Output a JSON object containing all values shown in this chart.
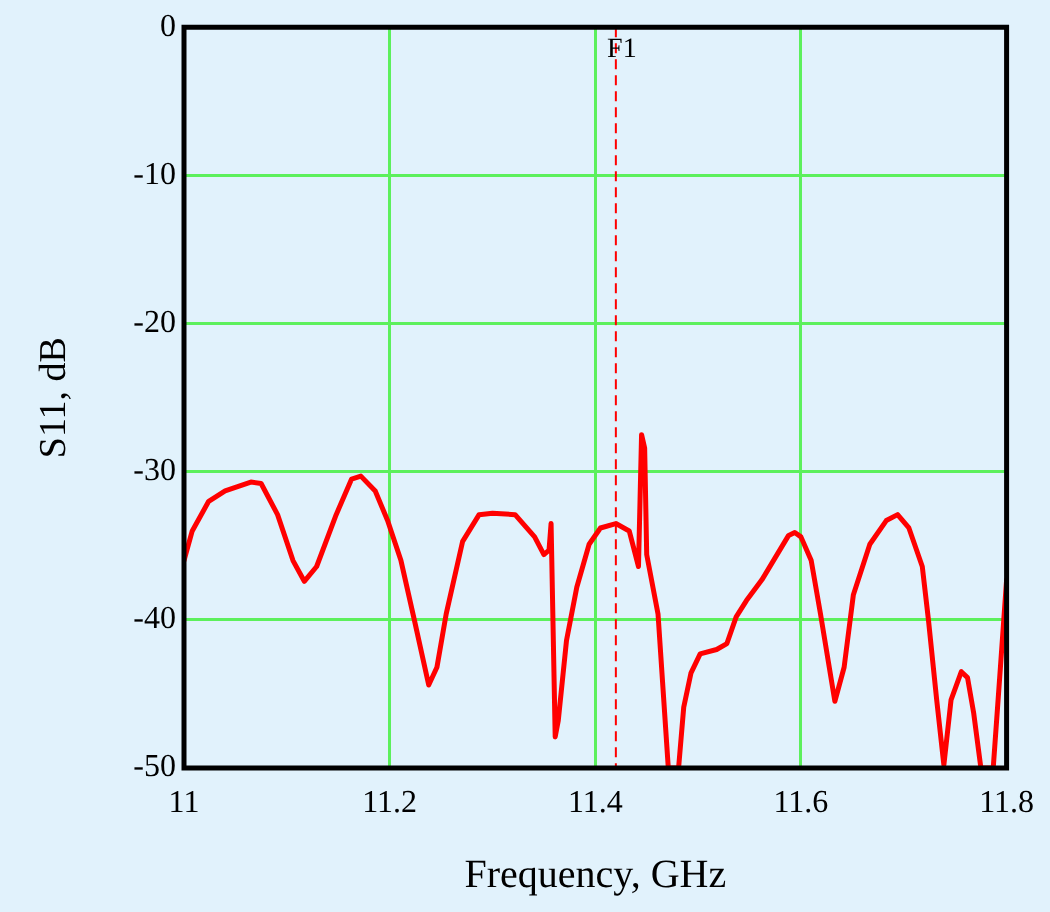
{
  "chart_data": {
    "type": "line",
    "xlabel": "Frequency, GHz",
    "ylabel": "S11, dB",
    "x": [
      11.0,
      11.008,
      11.024,
      11.04,
      11.065,
      11.075,
      11.091,
      11.106,
      11.117,
      11.129,
      11.148,
      11.163,
      11.172,
      11.186,
      11.198,
      11.211,
      11.224,
      11.238,
      11.246,
      11.255,
      11.271,
      11.287,
      11.3,
      11.322,
      11.341,
      11.35,
      11.355,
      11.357,
      11.361,
      11.364,
      11.372,
      11.382,
      11.394,
      11.405,
      11.42,
      11.433,
      11.442,
      11.445,
      11.448,
      11.45,
      11.461,
      11.471,
      11.481,
      11.486,
      11.493,
      11.502,
      11.518,
      11.528,
      11.537,
      11.547,
      11.562,
      11.575,
      11.588,
      11.594,
      11.6,
      11.61,
      11.619,
      11.633,
      11.642,
      11.651,
      11.667,
      11.683,
      11.694,
      11.705,
      11.718,
      11.724,
      11.732,
      11.739,
      11.746,
      11.756,
      11.762,
      11.768,
      11.775,
      11.787,
      11.794,
      11.8
    ],
    "series": [
      {
        "color": "#ff0000",
        "values": [
          -36.0,
          -34.0,
          -32.0,
          -31.3,
          -30.7,
          -30.8,
          -32.9,
          -36.0,
          -37.4,
          -36.4,
          -32.9,
          -30.5,
          -30.3,
          -31.3,
          -33.3,
          -36.0,
          -40.0,
          -44.4,
          -43.2,
          -39.6,
          -34.7,
          -32.9,
          -32.8,
          -32.9,
          -34.4,
          -35.6,
          -35.3,
          -33.5,
          -47.9,
          -46.8,
          -41.4,
          -37.8,
          -34.9,
          -33.8,
          -33.5,
          -34.0,
          -36.4,
          -27.5,
          -28.4,
          -35.6,
          -39.6,
          -50,
          -50,
          -45.9,
          -43.6,
          -42.3,
          -42.0,
          -41.6,
          -39.8,
          -38.7,
          -37.3,
          -35.8,
          -34.3,
          -34.1,
          -34.4,
          -36.0,
          -39.6,
          -45.5,
          -43.2,
          -38.3,
          -34.9,
          -33.3,
          -32.9,
          -33.8,
          -36.4,
          -40.0,
          -45.4,
          -49.8,
          -45.4,
          -43.5,
          -43.9,
          -46.3,
          -50,
          -50,
          -43.2,
          -37.3
        ]
      }
    ],
    "xlim": [
      11,
      11.8
    ],
    "xticks": [
      11,
      11.2,
      11.4,
      11.6,
      11.8
    ],
    "ylim": [
      -50,
      0
    ],
    "yticks": [
      -50,
      -40,
      -30,
      -20,
      -10,
      0
    ],
    "grid": true,
    "legend": false,
    "marker": "none",
    "line_style": "solid",
    "ref_lines": [
      {
        "axis": "x",
        "value": 11.42,
        "label": "F1",
        "color": "#ff0000",
        "line_style": "dashed"
      }
    ]
  }
}
